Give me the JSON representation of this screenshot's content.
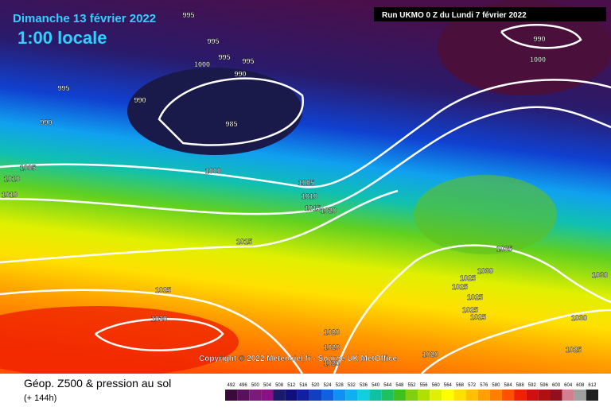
{
  "header": {
    "date": "Dimanche 13 février 2022",
    "time": "1:00 locale",
    "run": "Run UKMO 0 Z du Lundi 7 février 2022"
  },
  "copyright": "Copyright © 2022 Meteociel.fr - Source UK MetOffice",
  "footer": {
    "title": "Géop. Z500 & pression au sol",
    "subtitle": "(+ 144h)"
  },
  "isobar_labels": [
    "995",
    "995",
    "995",
    "995",
    "1000",
    "990",
    "995",
    "990",
    "985",
    "990",
    "1005",
    "1010",
    "1010",
    "1000",
    "1005",
    "1010",
    "1015",
    "1020",
    "1015",
    "1025",
    "1030",
    "990",
    "1000",
    "1035",
    "1030",
    "1025",
    "1025",
    "1025",
    "1025",
    "1025",
    "1030",
    "1030",
    "1025",
    "1020",
    "1020",
    "1020",
    "1020"
  ],
  "scale": {
    "labels": [
      "492",
      "496",
      "500",
      "504",
      "508",
      "512",
      "516",
      "520",
      "524",
      "528",
      "532",
      "536",
      "540",
      "544",
      "548",
      "552",
      "556",
      "560",
      "564",
      "568",
      "572",
      "576",
      "580",
      "584",
      "588",
      "592",
      "596",
      "600",
      "604",
      "608",
      "612"
    ],
    "colors": [
      "#3a0a3a",
      "#5a0f5a",
      "#7a1a7a",
      "#8a108a",
      "#1a1a6a",
      "#10107a",
      "#1020a0",
      "#1040c0",
      "#1060e0",
      "#1090f0",
      "#10b0f0",
      "#10d0e0",
      "#10c0a0",
      "#20c060",
      "#40c020",
      "#80d010",
      "#b0e000",
      "#e0f000",
      "#ffff00",
      "#ffe000",
      "#ffc000",
      "#ffa000",
      "#ff8000",
      "#ff5000",
      "#f02000",
      "#d01010",
      "#b01010",
      "#901020",
      "#d08090",
      "#a0a0a0",
      "#202020"
    ]
  }
}
